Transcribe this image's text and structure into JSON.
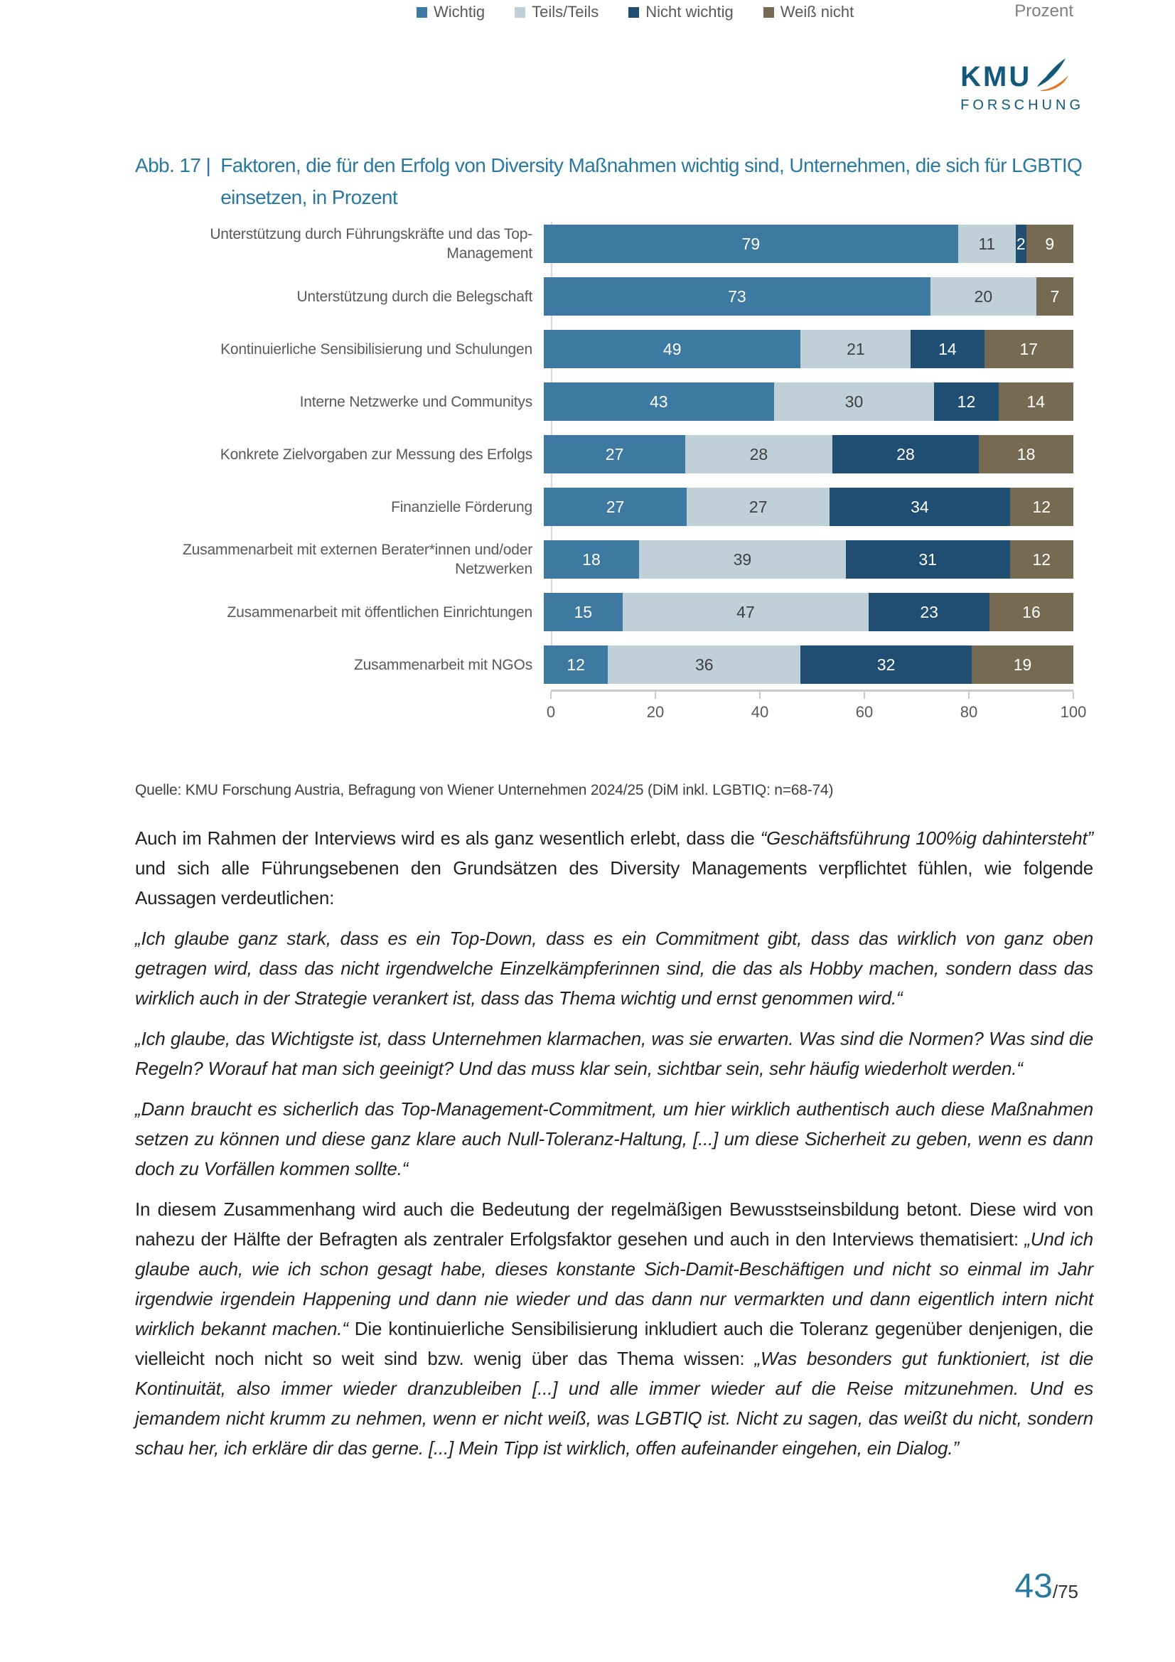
{
  "logo": {
    "line1": "KMU",
    "line2": "FORSCHUNG",
    "blue": "#14587C",
    "orange": "#E87424"
  },
  "figure": {
    "label": "Abb. 17 |",
    "title": "Faktoren, die für den Erfolg von Diversity Maßnahmen wichtig sind, Unternehmen, die sich für LGBTIQ einsetzen, in Prozent"
  },
  "chart_data": {
    "type": "bar",
    "orientation": "horizontal",
    "stacked": true,
    "categories": [
      "Unterstützung durch Führungskräfte und das Top-Management",
      "Unterstützung durch die Belegschaft",
      "Kontinuierliche Sensibilisierung und Schulungen",
      "Interne Netzwerke und Communitys",
      "Konkrete Zielvorgaben zur Messung des Erfolgs",
      "Finanzielle Förderung",
      "Zusammenarbeit mit externen Berater*innen und/oder Netzwerken",
      "Zusammenarbeit mit öffentlichen Einrichtungen",
      "Zusammenarbeit mit NGOs"
    ],
    "series": [
      {
        "name": "Wichtig",
        "color": "#3D79A0",
        "label_color": "#FFFFFF",
        "values": [
          79,
          73,
          49,
          43,
          27,
          27,
          18,
          15,
          12
        ]
      },
      {
        "name": "Teils/Teils",
        "color": "#BFD0D8",
        "label_color": "#404040",
        "values": [
          11,
          20,
          21,
          30,
          28,
          27,
          39,
          47,
          36
        ]
      },
      {
        "name": "Nicht wichtig",
        "color": "#1F4E72",
        "label_color": "#FFFFFF",
        "values": [
          2,
          0,
          14,
          12,
          28,
          34,
          31,
          23,
          32
        ]
      },
      {
        "name": "Weiß nicht",
        "color": "#776A52",
        "label_color": "#FFFFFF",
        "values": [
          9,
          7,
          17,
          14,
          18,
          12,
          12,
          16,
          19
        ]
      }
    ],
    "x_axis": {
      "range": [
        0,
        100
      ],
      "ticks": [
        0,
        20,
        40,
        60,
        80,
        100
      ],
      "label": "Prozent"
    },
    "legend_position": "bottom"
  },
  "source": "Quelle: KMU Forschung Austria, Befragung von Wiener Unternehmen 2024/25 (DiM inkl. LGBTIQ: n=68-74)",
  "body": {
    "p1": {
      "s1": "Auch im Rahmen der Interviews wird es als ganz wesentlich erlebt, dass die ",
      "s2_italic": "“Geschäftsführung 100%ig dahintersteht”",
      "s3": " und sich alle Führungsebenen den Grundsätzen des Diversity Managements verpflichtet fühlen, wie folgende Aussagen verdeutlichen:"
    },
    "q1": "„Ich glaube ganz stark, dass es ein Top-Down, dass es ein Commitment gibt, dass das wirklich von ganz oben getragen wird, dass das nicht irgendwelche Einzelkämpferinnen sind, die das als Hobby machen, sondern dass das wirklich auch in der Strategie verankert ist, dass das Thema wichtig und ernst genommen wird.“",
    "q2": "„Ich glaube, das Wichtigste ist, dass Unternehmen klarmachen, was sie erwarten. Was sind die Normen? Was sind die Regeln? Worauf hat man sich geeinigt? Und das muss klar sein, sichtbar sein, sehr häufig wiederholt werden.“",
    "q3": "„Dann braucht es sicherlich das Top-Management-Commitment, um hier wirklich authentisch auch diese Maßnahmen setzen zu können und diese ganz klare auch Null-Toleranz-Haltung, [...] um diese Sicherheit zu geben, wenn es dann doch zu Vorfällen kommen sollte.“",
    "p5": {
      "s1": "In diesem Zusammenhang wird auch die Bedeutung der regelmäßigen Bewusstseinsbildung betont. Diese wird von nahezu der Hälfte der Befragten als zentraler Erfolgsfaktor gesehen und auch in den Interviews thematisiert: ",
      "s2_italic": "„Und ich glaube auch, wie ich schon gesagt habe, dieses konstante Sich-Damit-Beschäftigen und nicht so einmal im Jahr irgendwie irgendein Happening und dann nie wieder und das dann nur vermarkten und dann eigentlich intern nicht wirklich bekannt machen.“",
      "s3": " Die kontinuierliche Sensibilisierung inkludiert auch die Toleranz gegenüber denjenigen, die vielleicht noch nicht so weit sind bzw. wenig über das Thema wissen: ",
      "s4_italic": "„Was besonders gut funktioniert, ist die Kontinuität, also immer wieder dranzubleiben [...] und alle immer wieder auf die Reise mitzunehmen. Und es jemandem nicht krumm zu nehmen, wenn er nicht weiß, was LGBTIQ ist. Nicht zu sagen, das weißt du nicht, sondern schau her, ich erkläre dir das gerne. [...] Mein Tipp ist wirklich, offen aufeinander eingehen, ein Dialog.”"
    }
  },
  "page": {
    "number": "43",
    "total": "/75"
  }
}
